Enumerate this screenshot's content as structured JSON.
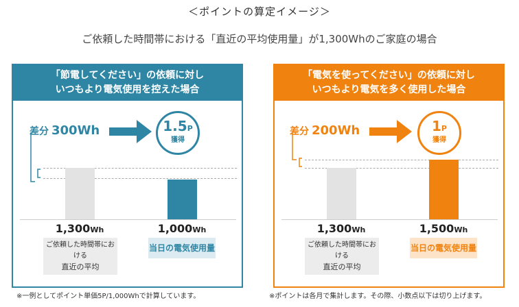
{
  "header": {
    "title": "＜ポイントの算定イメージ＞",
    "subtitle": "ご依頼した時間帯における「直近の平均使用量」が1,300Whのご家庭の場合"
  },
  "left_panel": {
    "heading_line1": "「節電してください」の依頼に対し",
    "heading_line2": "いつもより電気使用を控えた場合",
    "diff_label": "差分",
    "diff_value": "300Wh",
    "points_number": "1.5",
    "points_unit": "P",
    "points_label": "獲得",
    "reference_value": "1,300",
    "reference_unit": "Wh",
    "today_value": "1,000",
    "today_unit": "Wh",
    "reference_label_line1": "ご依頼した時間帯における",
    "reference_label_line2": "直近の平均",
    "today_label": "当日の電気使用量",
    "color": "#2e86a4"
  },
  "right_panel": {
    "heading_line1": "「電気を使ってください」の依頼に対し",
    "heading_line2": "いつもより電気を多く使用した場合",
    "diff_label": "差分",
    "diff_value": "200Wh",
    "points_number": "1",
    "points_unit": "P",
    "points_label": "獲得",
    "reference_value": "1,300",
    "reference_unit": "Wh",
    "today_value": "1,500",
    "today_unit": "Wh",
    "reference_label_line1": "ご依頼した時間帯における",
    "reference_label_line2": "直近の平均",
    "today_label": "当日の電気使用量",
    "color": "#f0820f"
  },
  "notes": {
    "left": "※一例としてポイント単価5P/1,000Whで計算しています。",
    "right": "※ポイントは各月で集計します。その際、小数点以下は切り上げます。"
  }
}
